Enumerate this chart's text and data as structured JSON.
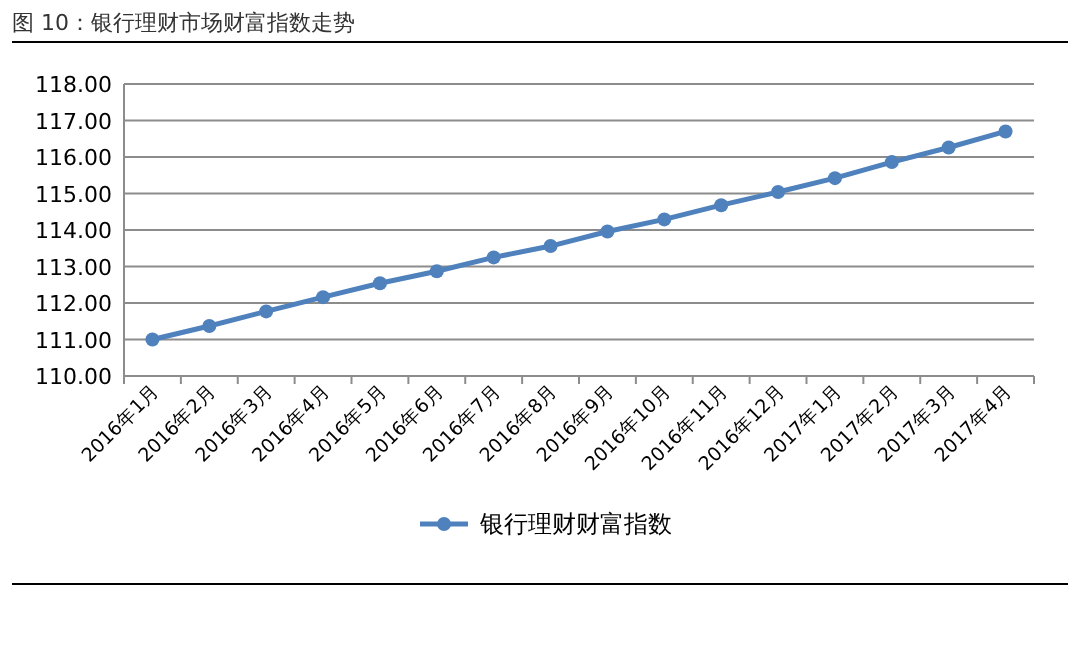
{
  "chart_data": {
    "type": "line",
    "title": "图 10：银行理财市场财富指数走势",
    "categories": [
      "2016年1月",
      "2016年2月",
      "2016年3月",
      "2016年4月",
      "2016年5月",
      "2016年6月",
      "2016年7月",
      "2016年8月",
      "2016年9月",
      "2016年10月",
      "2016年11月",
      "2016年12月",
      "2017年1月",
      "2017年2月",
      "2017年3月",
      "2017年4月"
    ],
    "series": [
      {
        "name": "银行理财财富指数",
        "color": "#4f81bd",
        "values": [
          111.0,
          111.37,
          111.77,
          112.16,
          112.54,
          112.87,
          113.25,
          113.56,
          113.96,
          114.29,
          114.68,
          115.04,
          115.42,
          115.86,
          116.26,
          116.7
        ]
      }
    ],
    "ylim": [
      110,
      118
    ],
    "yticks": [
      {
        "value": 110,
        "label": "110.00"
      },
      {
        "value": 111,
        "label": "111.00"
      },
      {
        "value": 112,
        "label": "112.00"
      },
      {
        "value": 113,
        "label": "113.00"
      },
      {
        "value": 114,
        "label": "114.00"
      },
      {
        "value": 115,
        "label": "115.00"
      },
      {
        "value": 116,
        "label": "116.00"
      },
      {
        "value": 117,
        "label": "117.00"
      },
      {
        "value": 118,
        "label": "118.00"
      }
    ],
    "grid": "y",
    "legend": "bottom",
    "marker": "circle",
    "line_style": "solid"
  }
}
